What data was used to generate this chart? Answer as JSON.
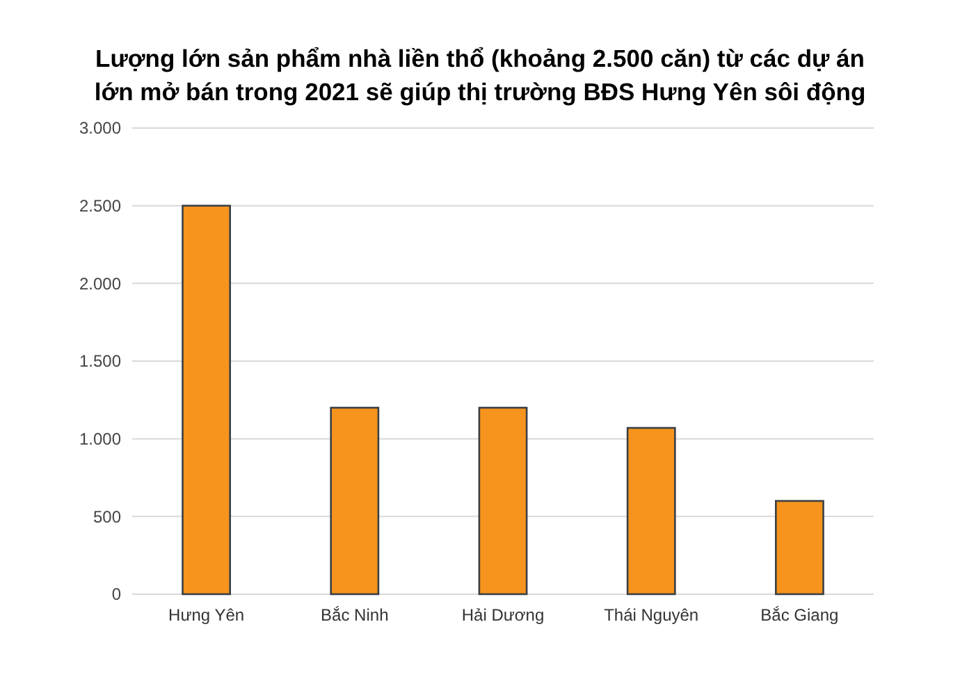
{
  "chart_data": {
    "type": "bar",
    "title": "Lượng lớn sản phẩm nhà liền thổ (khoảng 2.500 căn) từ các dự án\nlớn mở bán trong 2021 sẽ giúp thị trường BĐS Hưng Yên sôi động",
    "categories": [
      "Hưng Yên",
      "Bắc Ninh",
      "Hải Dương",
      "Thái Nguyên",
      "Bắc Giang"
    ],
    "values": [
      2500,
      1200,
      1200,
      1070,
      600
    ],
    "color": "#f7941d",
    "ylim": [
      0,
      3000
    ],
    "yticks": [
      0,
      {
        "value": 500,
        "label": "500"
      },
      {
        "value": 1000,
        "label": "1.000"
      },
      {
        "value": 1500,
        "label": "1.500"
      },
      {
        "value": 2000,
        "label": "2.000"
      },
      {
        "value": 2500,
        "label": "2.500"
      },
      {
        "value": 3000,
        "label": "3.000"
      }
    ],
    "grid": "y"
  }
}
